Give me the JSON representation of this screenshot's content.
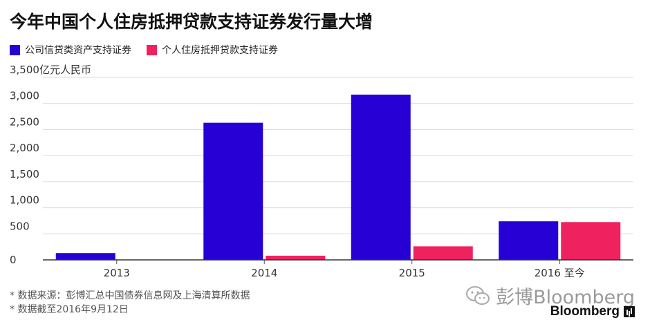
{
  "title": "今年中国个人住房抵押贷款支持证券发行量大增",
  "legend": [
    {
      "label": "公司信贷类资产支持证券",
      "color": "#2600d4"
    },
    {
      "label": "个人住房抵押贷款支持证券",
      "color": "#f0215f"
    }
  ],
  "chart_data": {
    "type": "bar",
    "categories": [
      "2013",
      "2014",
      "2015",
      "2016 至今"
    ],
    "series": [
      {
        "name": "公司信贷类资产支持证券",
        "values": [
          130,
          2630,
          3170,
          740
        ],
        "color": "#2600d4"
      },
      {
        "name": "个人住房抵押贷款支持证券",
        "values": [
          0,
          80,
          260,
          725
        ],
        "color": "#f0215f"
      }
    ],
    "ylabel": "亿元人民币",
    "ylim": [
      0,
      3500
    ],
    "yticks": [
      0,
      500,
      1000,
      1500,
      2000,
      2500,
      3000,
      3500
    ],
    "ytick_labels": [
      "0",
      "500",
      "1,000",
      "1,500",
      "2,000",
      "2,500",
      "3,000",
      "3,500亿元人民币"
    ],
    "grid": true
  },
  "footer": {
    "note1": "* 数据来源：彭博汇总中国债券信息网及上海清算所数据",
    "note2": "* 数据截至2016年9月12日"
  },
  "watermark": "彭博Bloomberg",
  "brand": "Bloomberg"
}
